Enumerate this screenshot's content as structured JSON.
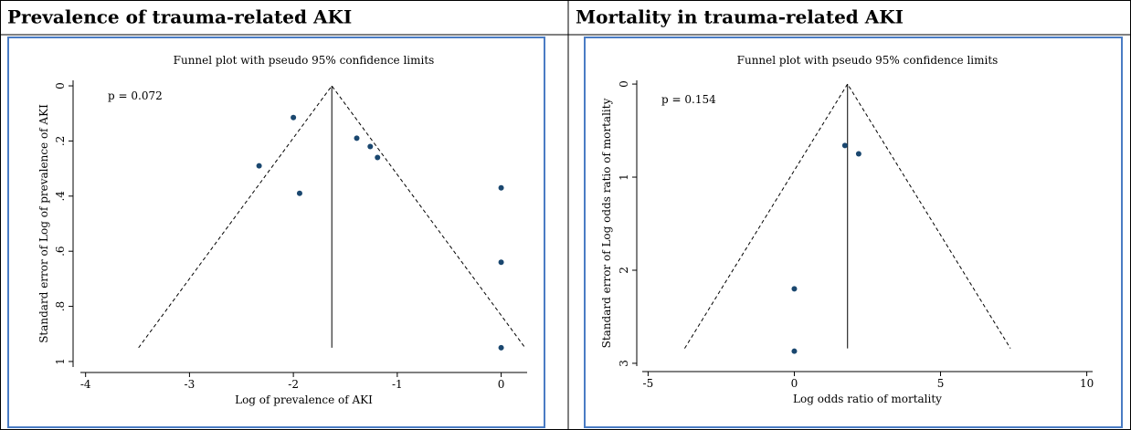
{
  "chart_data": [
    {
      "type": "funnel",
      "heading": "Prevalence of trauma-related AKI",
      "title": "Funnel plot with pseudo 95% confidence limits",
      "annotation": "p = 0.072",
      "x_label": "Log of prevalence of AKI",
      "y_label": "Standard error of Log of prevalence of AKI",
      "x": [
        -2.0,
        -1.39,
        -1.26,
        -1.19,
        -2.33,
        -1.94,
        0,
        0,
        0
      ],
      "values": [
        0.115,
        0.19,
        0.22,
        0.26,
        0.29,
        0.39,
        0.37,
        0.64,
        0.95
      ],
      "color": "#1a476f",
      "funnel_lines": [
        {
          "style": "dashed",
          "x": [
            -3.49,
            -1.63,
            0.23
          ],
          "y": [
            0.95,
            0,
            0.95
          ]
        },
        {
          "style": "solid",
          "x": [
            -1.63,
            -1.63
          ],
          "y": [
            0,
            0.95
          ]
        }
      ],
      "xlim": [
        -4.05,
        0.25
      ],
      "ylim": [
        -0.02,
        1.02
      ],
      "y_reversed": true,
      "xticks": [
        -4,
        -3,
        -2,
        -1,
        0
      ],
      "yticks": [
        0,
        {
          "value": 0.2,
          "label": ".2"
        },
        {
          "value": 0.4,
          "label": ".4"
        },
        {
          "value": 0.6,
          "label": ".6"
        },
        {
          "value": 0.8,
          "label": ".8"
        },
        1
      ]
    },
    {
      "type": "funnel",
      "heading": "Mortality in trauma-related AKI",
      "title": "Funnel plot with pseudo 95% confidence limits",
      "annotation": "p = 0.154",
      "x_label": "Log odds ratio of  mortality",
      "y_label": "Standard error of Log odds ratio of  mortality",
      "x": [
        1.73,
        2.2,
        0,
        0
      ],
      "values": [
        0.66,
        0.75,
        2.2,
        2.87
      ],
      "color": "#1a476f",
      "funnel_lines": [
        {
          "style": "dashed",
          "x": [
            -3.75,
            1.82,
            7.39
          ],
          "y": [
            2.84,
            0,
            2.84
          ]
        },
        {
          "style": "solid",
          "x": [
            1.82,
            1.82
          ],
          "y": [
            0,
            2.84
          ]
        }
      ],
      "xlim": [
        -5.2,
        10.2
      ],
      "ylim": [
        -0.04,
        3.03
      ],
      "y_reversed": true,
      "xticks": [
        -5,
        0,
        5,
        10
      ],
      "yticks": [
        0,
        1,
        2,
        3
      ]
    }
  ]
}
